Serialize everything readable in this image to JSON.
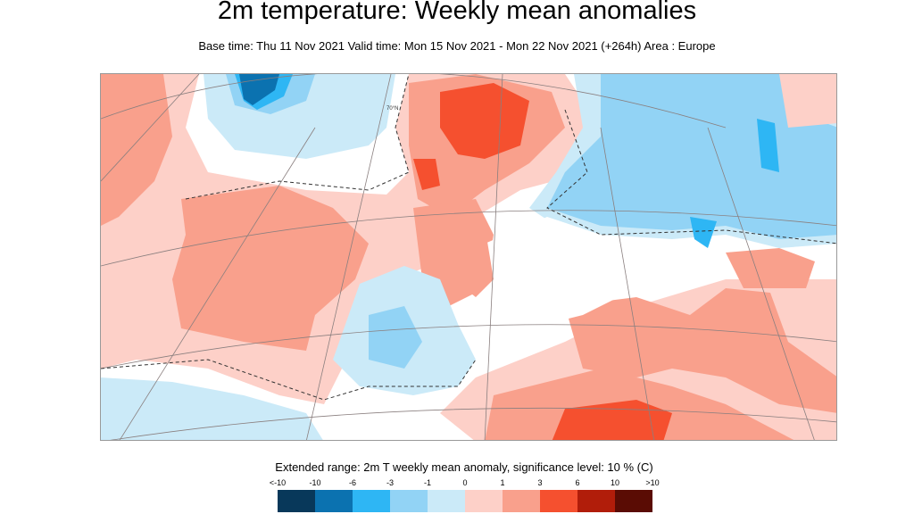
{
  "title": "2m temperature: Weekly mean anomalies",
  "subtitle": "Base time: Thu 11 Nov 2021 Valid time: Mon 15 Nov 2021 - Mon 22 Nov 2021 (+264h) Area : Europe",
  "map": {
    "region": "Europe",
    "graticule_label": "70°N"
  },
  "legend": {
    "title": "Extended range: 2m T weekly mean anomaly, significance level: 10 % (C)",
    "labels": [
      "<-10",
      "-10",
      "-6",
      "-3",
      "-1",
      "0",
      "1",
      "3",
      "6",
      "10",
      ">10"
    ],
    "colors": [
      "#08385a",
      "#0b72b0",
      "#2eb6f4",
      "#92d3f5",
      "#cbeaf8",
      "#fdd0c8",
      "#f9a08c",
      "#f5502f",
      "#b11d0a",
      "#5a0c04"
    ]
  }
}
